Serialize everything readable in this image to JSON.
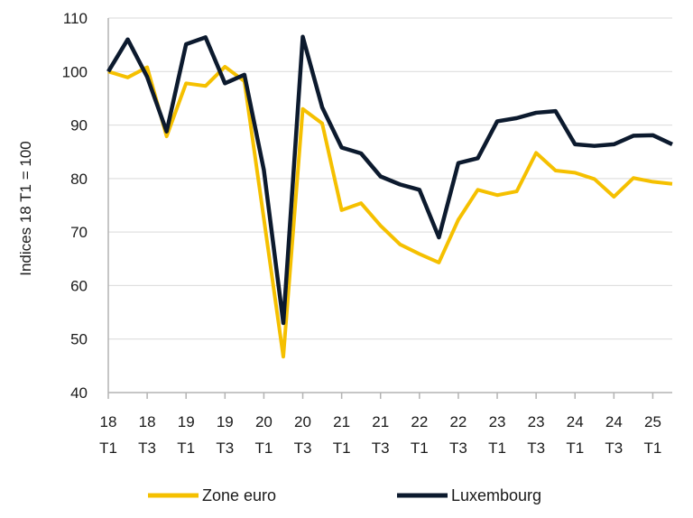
{
  "chart_data": {
    "type": "line",
    "xlabel": "",
    "ylabel": "Indices 18 T1 = 100",
    "ylim": [
      40,
      110
    ],
    "yticks": [
      40,
      50,
      60,
      70,
      80,
      90,
      100,
      110
    ],
    "grid": true,
    "legend_position": "bottom",
    "x": [
      "18 T1",
      "18 T2",
      "18 T3",
      "18 T4",
      "19 T1",
      "19 T2",
      "19 T3",
      "19 T4",
      "20 T1",
      "20 T2",
      "20 T3",
      "20 T4",
      "21 T1",
      "21 T2",
      "21 T3",
      "21 T4",
      "22 T1",
      "22 T2",
      "22 T3",
      "22 T4",
      "23 T1",
      "23 T2",
      "23 T3",
      "23 T4",
      "24 T1",
      "24 T2",
      "24 T3",
      "24 T4",
      "25 T1",
      "25 T2"
    ],
    "xtick_labels": [
      {
        "year": "18",
        "quarter": "T1"
      },
      {
        "year": "18",
        "quarter": "T3"
      },
      {
        "year": "19",
        "quarter": "T1"
      },
      {
        "year": "19",
        "quarter": "T3"
      },
      {
        "year": "20",
        "quarter": "T1"
      },
      {
        "year": "20",
        "quarter": "T3"
      },
      {
        "year": "21",
        "quarter": "T1"
      },
      {
        "year": "21",
        "quarter": "T3"
      },
      {
        "year": "22",
        "quarter": "T1"
      },
      {
        "year": "22",
        "quarter": "T3"
      },
      {
        "year": "23",
        "quarter": "T1"
      },
      {
        "year": "23",
        "quarter": "T3"
      },
      {
        "year": "24",
        "quarter": "T1"
      },
      {
        "year": "24",
        "quarter": "T3"
      },
      {
        "year": "25",
        "quarter": "T1"
      }
    ],
    "series": [
      {
        "name": "Zone euro",
        "color": "#F5C000",
        "values": [
          100,
          98.9,
          100.8,
          87.9,
          97.8,
          97.3,
          100.9,
          98.2,
          72.5,
          46.7,
          93.0,
          90.3,
          74.1,
          75.4,
          71.2,
          67.7,
          65.9,
          64.3,
          72.3,
          77.9,
          76.9,
          77.6,
          84.8,
          81.5,
          81.1,
          79.9,
          76.6,
          80.1,
          79.4,
          79.0
        ]
      },
      {
        "name": "Luxembourg",
        "color": "#0C1A2E",
        "values": [
          100,
          106.0,
          99.0,
          88.8,
          105.1,
          106.4,
          97.8,
          99.4,
          81.6,
          53.0,
          106.5,
          93.3,
          85.8,
          84.7,
          80.4,
          78.9,
          77.9,
          69.0,
          82.9,
          83.8,
          90.7,
          91.3,
          92.3,
          92.6,
          86.4,
          86.1,
          86.4,
          88.0,
          88.1,
          86.4
        ]
      }
    ]
  }
}
